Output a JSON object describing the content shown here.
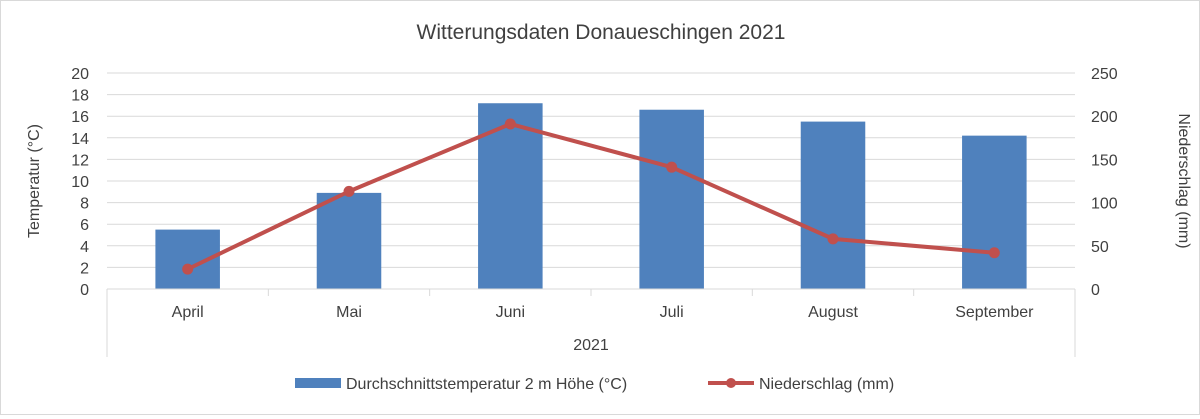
{
  "chart_data": {
    "type": "bar+line",
    "title": "Witterungsdaten Donaueschingen 2021",
    "categories": [
      "April",
      "Mai",
      "Juni",
      "Juli",
      "August",
      "September"
    ],
    "group_label": "2021",
    "y_left": {
      "label": "Temperatur (°C)",
      "range": [
        0,
        20
      ],
      "ticks": [
        0,
        2,
        4,
        6,
        8,
        10,
        12,
        14,
        16,
        18,
        20
      ]
    },
    "y_right": {
      "label": "Niederschlag (mm)",
      "range": [
        0,
        250
      ],
      "ticks": [
        0,
        50,
        100,
        150,
        200,
        250
      ]
    },
    "gridlines": true,
    "legend_position": "bottom",
    "series": [
      {
        "name": "Durchschnittstemperatur 2 m Höhe (°C)",
        "type": "bar",
        "axis": "left",
        "color": "#4f81bd",
        "values": [
          5.5,
          8.9,
          17.2,
          16.6,
          15.5,
          14.2
        ]
      },
      {
        "name": "Niederschlag (mm)",
        "type": "line",
        "axis": "right",
        "color": "#c0504d",
        "values": [
          23,
          113,
          191,
          141,
          58,
          42
        ]
      }
    ]
  }
}
